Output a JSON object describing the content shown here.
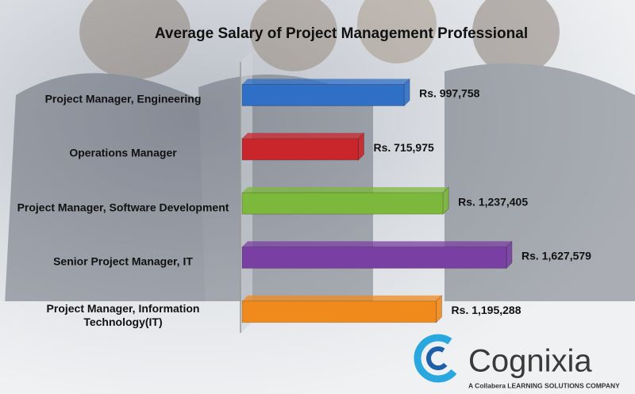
{
  "chart_data": {
    "type": "bar",
    "orientation": "horizontal",
    "title": "Average Salary of Project Management Professional",
    "categories": [
      "Project Manager, Engineering",
      "Operations Manager",
      "Project Manager, Software Development",
      "Senior Project Manager, IT",
      "Project Manager, Information Technology(IT)"
    ],
    "values": [
      997758,
      715975,
      1237405,
      1627579,
      1195288
    ],
    "value_labels": [
      "Rs. 997,758",
      "Rs. 715,975",
      "Rs. 1,237,405",
      "Rs. 1,627,579",
      "Rs. 1,195,288"
    ],
    "colors": [
      "#2f6fc6",
      "#c8262b",
      "#7cb83b",
      "#7a3fa2",
      "#f08a1c"
    ]
  },
  "logo": {
    "name": "Cognixia",
    "tagline": "A Collabera LEARNING SOLUTIONS COMPANY"
  }
}
